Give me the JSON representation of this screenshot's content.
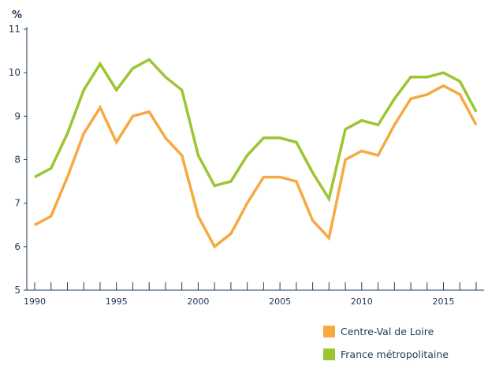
{
  "chart_data": {
    "type": "line",
    "ylabel": "%",
    "xlabel": "",
    "ylim": [
      5,
      11
    ],
    "xlim": [
      1990,
      2017
    ],
    "grid": false,
    "legend": "bottom-right",
    "yticks": [
      "5",
      "6",
      "7",
      "8",
      "9",
      "10",
      "11"
    ],
    "xticks": [
      "1990",
      "1995",
      "2000",
      "2005",
      "2010",
      "2015"
    ],
    "x": [
      1990,
      1991,
      1992,
      1993,
      1994,
      1995,
      1996,
      1997,
      1998,
      1999,
      2000,
      2001,
      2002,
      2003,
      2004,
      2005,
      2006,
      2007,
      2008,
      2009,
      2010,
      2011,
      2012,
      2013,
      2014,
      2015,
      2016,
      2017
    ],
    "series": [
      {
        "name": "Centre-Val de Loire",
        "color": "#f7a941",
        "values": [
          6.5,
          6.7,
          7.6,
          8.6,
          9.2,
          8.4,
          9.0,
          9.1,
          8.5,
          8.1,
          6.7,
          6.0,
          6.3,
          7.0,
          7.6,
          7.6,
          7.5,
          6.6,
          6.2,
          8.0,
          8.2,
          8.1,
          8.8,
          9.4,
          9.5,
          9.7,
          9.5,
          8.8
        ]
      },
      {
        "name": "France métropolitaine",
        "color": "#9bc631",
        "values": [
          7.6,
          7.8,
          8.6,
          9.6,
          10.2,
          9.6,
          10.1,
          10.3,
          9.9,
          9.6,
          8.1,
          7.4,
          7.5,
          8.1,
          8.5,
          8.5,
          8.4,
          7.7,
          7.1,
          8.7,
          8.9,
          8.8,
          9.4,
          9.9,
          9.9,
          10.0,
          9.8,
          9.1
        ]
      }
    ],
    "axis_color": "#1d3a57"
  }
}
